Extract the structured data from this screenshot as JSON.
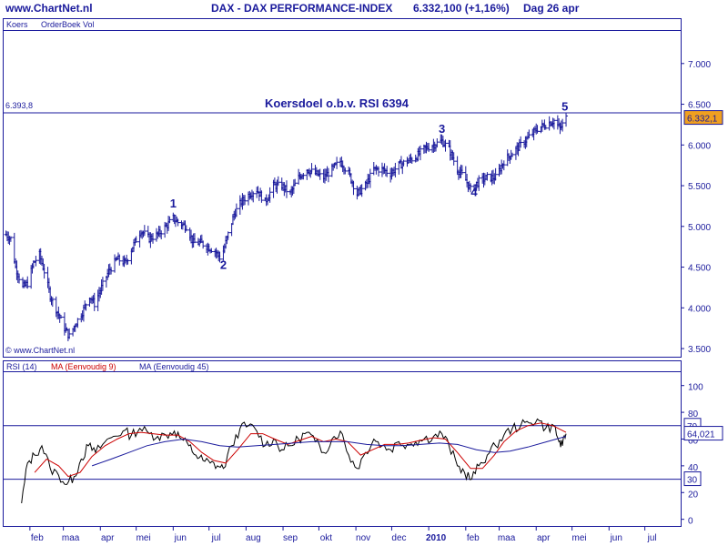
{
  "header": {
    "site": "www.ChartNet.nl",
    "title": "DAX - DAX PERFORMANCE-INDEX",
    "quote": "6.332,100 (+1,16%)",
    "period": "Dag 26 apr"
  },
  "price_panel": {
    "legend": [
      "Koers",
      "OrderBoek Vol"
    ],
    "copyright": "© www.ChartNet.nl",
    "annotation": "Koersdoel o.b.v. RSI 6394",
    "target_line_label": "6.393,8",
    "last_price_label": "6.332,1"
  },
  "rsi_panel": {
    "legend": {
      "rsi": "RSI (14)",
      "ma9": "MA (Eenvoudig 9)",
      "ma45": "MA (Eenvoudig 45)"
    },
    "last_value_label": "64,021",
    "upper_level_label": "70",
    "lower_level_label": "30"
  },
  "colors": {
    "accent": "#1a1a9c",
    "ma9": "#cc0000",
    "last_badge": "#f0a020",
    "grid": "#1a1a9c"
  },
  "chart_data": [
    {
      "type": "ohlc",
      "x_type": "date",
      "x_range": [
        "2009-01-10",
        "2010-07-31"
      ],
      "x_tick_labels": [
        "feb",
        "maa",
        "apr",
        "mei",
        "jun",
        "jul",
        "aug",
        "sep",
        "okt",
        "nov",
        "dec",
        "2010",
        "feb",
        "maa",
        "apr",
        "mei",
        "jun",
        "jul"
      ],
      "x_tick_dates": [
        "2009-02-01",
        "2009-03-01",
        "2009-04-01",
        "2009-05-01",
        "2009-06-01",
        "2009-07-01",
        "2009-08-01",
        "2009-09-01",
        "2009-10-01",
        "2009-11-01",
        "2009-12-01",
        "2010-01-01",
        "2010-02-01",
        "2010-03-01",
        "2010-04-01",
        "2010-05-01",
        "2010-06-01",
        "2010-07-01"
      ],
      "y_range": [
        3400,
        7400
      ],
      "y_tick_labels": [
        "3.500",
        "4.000",
        "4.500",
        "5.000",
        "5.500",
        "6.000",
        "6.500",
        "7.000"
      ],
      "y_tick_values": [
        3500,
        4000,
        4500,
        5000,
        5500,
        6000,
        6500,
        7000
      ],
      "target_level": 6393.8,
      "last_value": 6332.1,
      "close_path": [
        [
          "2009-01-12",
          4900
        ],
        [
          "2009-01-16",
          4850
        ],
        [
          "2009-01-20",
          4500
        ],
        [
          "2009-01-26",
          4250
        ],
        [
          "2009-01-30",
          4300
        ],
        [
          "2009-02-04",
          4550
        ],
        [
          "2009-02-09",
          4650
        ],
        [
          "2009-02-13",
          4450
        ],
        [
          "2009-02-18",
          4150
        ],
        [
          "2009-02-24",
          3950
        ],
        [
          "2009-03-02",
          3750
        ],
        [
          "2009-03-06",
          3650
        ],
        [
          "2009-03-11",
          3800
        ],
        [
          "2009-03-17",
          3950
        ],
        [
          "2009-03-23",
          4150
        ],
        [
          "2009-03-27",
          4050
        ],
        [
          "2009-04-02",
          4250
        ],
        [
          "2009-04-08",
          4450
        ],
        [
          "2009-04-15",
          4600
        ],
        [
          "2009-04-22",
          4550
        ],
        [
          "2009-04-28",
          4750
        ],
        [
          "2009-05-05",
          4950
        ],
        [
          "2009-05-12",
          4850
        ],
        [
          "2009-05-19",
          4900
        ],
        [
          "2009-05-26",
          5000
        ],
        [
          "2009-06-01",
          5100
        ],
        [
          "2009-06-05",
          5050
        ],
        [
          "2009-06-12",
          5000
        ],
        [
          "2009-06-18",
          4800
        ],
        [
          "2009-06-24",
          4800
        ],
        [
          "2009-06-30",
          4750
        ],
        [
          "2009-07-06",
          4700
        ],
        [
          "2009-07-11",
          4600
        ],
        [
          "2009-07-16",
          4850
        ],
        [
          "2009-07-22",
          5150
        ],
        [
          "2009-07-28",
          5300
        ],
        [
          "2009-08-04",
          5400
        ],
        [
          "2009-08-10",
          5450
        ],
        [
          "2009-08-17",
          5300
        ],
        [
          "2009-08-24",
          5500
        ],
        [
          "2009-08-31",
          5500
        ],
        [
          "2009-09-07",
          5400
        ],
        [
          "2009-09-14",
          5600
        ],
        [
          "2009-09-21",
          5700
        ],
        [
          "2009-09-28",
          5650
        ],
        [
          "2009-10-05",
          5600
        ],
        [
          "2009-10-12",
          5700
        ],
        [
          "2009-10-19",
          5800
        ],
        [
          "2009-10-26",
          5650
        ],
        [
          "2009-11-02",
          5400
        ],
        [
          "2009-11-09",
          5500
        ],
        [
          "2009-11-16",
          5700
        ],
        [
          "2009-11-23",
          5700
        ],
        [
          "2009-11-30",
          5650
        ],
        [
          "2009-12-07",
          5750
        ],
        [
          "2009-12-14",
          5800
        ],
        [
          "2009-12-21",
          5850
        ],
        [
          "2009-12-28",
          5950
        ],
        [
          "2010-01-05",
          6000
        ],
        [
          "2010-01-12",
          6050
        ],
        [
          "2010-01-18",
          5950
        ],
        [
          "2010-01-25",
          5700
        ],
        [
          "2010-01-31",
          5600
        ],
        [
          "2010-02-05",
          5450
        ],
        [
          "2010-02-12",
          5550
        ],
        [
          "2010-02-19",
          5600
        ],
        [
          "2010-02-26",
          5600
        ],
        [
          "2010-03-05",
          5800
        ],
        [
          "2010-03-12",
          5900
        ],
        [
          "2010-03-19",
          6000
        ],
        [
          "2010-03-26",
          6100
        ],
        [
          "2010-04-02",
          6200
        ],
        [
          "2010-04-09",
          6250
        ],
        [
          "2010-04-16",
          6300
        ],
        [
          "2010-04-21",
          6200
        ],
        [
          "2010-04-26",
          6332.1
        ]
      ],
      "wave_labels": [
        {
          "label": "1",
          "date": "2009-06-01",
          "value": 5230
        },
        {
          "label": "2",
          "date": "2009-07-13",
          "value": 4480
        },
        {
          "label": "3",
          "date": "2010-01-12",
          "value": 6150
        },
        {
          "label": "4",
          "date": "2010-02-08",
          "value": 5370
        },
        {
          "label": "5",
          "date": "2010-04-25",
          "value": 6420
        }
      ]
    },
    {
      "type": "line",
      "x_type": "date",
      "x_range": [
        "2009-01-10",
        "2010-07-31"
      ],
      "y_range": [
        -5,
        110
      ],
      "y_tick_labels": [
        "0",
        "20",
        "40",
        "60",
        "80",
        "100"
      ],
      "y_tick_values": [
        0,
        20,
        40,
        60,
        80,
        100
      ],
      "levels": [
        30,
        70
      ],
      "last_value": 64.021,
      "series": [
        {
          "name": "RSI (14)",
          "points": [
            [
              "2009-01-25",
              12
            ],
            [
              "2009-01-30",
              42
            ],
            [
              "2009-02-05",
              48
            ],
            [
              "2009-02-11",
              55
            ],
            [
              "2009-02-18",
              38
            ],
            [
              "2009-02-25",
              33
            ],
            [
              "2009-03-04",
              26
            ],
            [
              "2009-03-10",
              32
            ],
            [
              "2009-03-16",
              45
            ],
            [
              "2009-03-22",
              55
            ],
            [
              "2009-03-28",
              50
            ],
            [
              "2009-04-05",
              58
            ],
            [
              "2009-04-12",
              62
            ],
            [
              "2009-04-20",
              66
            ],
            [
              "2009-04-27",
              63
            ],
            [
              "2009-05-04",
              68
            ],
            [
              "2009-05-12",
              64
            ],
            [
              "2009-05-19",
              62
            ],
            [
              "2009-05-26",
              63
            ],
            [
              "2009-06-02",
              66
            ],
            [
              "2009-06-08",
              60
            ],
            [
              "2009-06-14",
              55
            ],
            [
              "2009-06-20",
              48
            ],
            [
              "2009-06-26",
              44
            ],
            [
              "2009-07-02",
              42
            ],
            [
              "2009-07-08",
              40
            ],
            [
              "2009-07-13",
              38
            ],
            [
              "2009-07-20",
              55
            ],
            [
              "2009-07-27",
              68
            ],
            [
              "2009-08-03",
              70
            ],
            [
              "2009-08-10",
              66
            ],
            [
              "2009-08-17",
              55
            ],
            [
              "2009-08-24",
              60
            ],
            [
              "2009-08-31",
              52
            ],
            [
              "2009-09-07",
              55
            ],
            [
              "2009-09-14",
              60
            ],
            [
              "2009-09-21",
              65
            ],
            [
              "2009-09-28",
              58
            ],
            [
              "2009-10-05",
              50
            ],
            [
              "2009-10-12",
              60
            ],
            [
              "2009-10-19",
              66
            ],
            [
              "2009-10-26",
              48
            ],
            [
              "2009-11-02",
              38
            ],
            [
              "2009-11-09",
              50
            ],
            [
              "2009-11-16",
              60
            ],
            [
              "2009-11-23",
              55
            ],
            [
              "2009-11-30",
              52
            ],
            [
              "2009-12-07",
              58
            ],
            [
              "2009-12-14",
              56
            ],
            [
              "2009-12-21",
              58
            ],
            [
              "2009-12-28",
              60
            ],
            [
              "2010-01-05",
              62
            ],
            [
              "2010-01-12",
              64
            ],
            [
              "2010-01-18",
              55
            ],
            [
              "2010-01-25",
              40
            ],
            [
              "2010-01-31",
              35
            ],
            [
              "2010-02-06",
              30
            ],
            [
              "2010-02-12",
              40
            ],
            [
              "2010-02-19",
              48
            ],
            [
              "2010-02-26",
              55
            ],
            [
              "2010-03-05",
              63
            ],
            [
              "2010-03-12",
              68
            ],
            [
              "2010-03-19",
              70
            ],
            [
              "2010-03-26",
              72
            ],
            [
              "2010-04-02",
              75
            ],
            [
              "2010-04-09",
              68
            ],
            [
              "2010-04-16",
              70
            ],
            [
              "2010-04-20",
              58
            ],
            [
              "2010-04-23",
              55
            ],
            [
              "2010-04-26",
              64
            ]
          ]
        },
        {
          "name": "MA (Eenvoudig 9)",
          "points": [
            [
              "2009-02-05",
              35
            ],
            [
              "2009-02-15",
              45
            ],
            [
              "2009-02-25",
              40
            ],
            [
              "2009-03-05",
              32
            ],
            [
              "2009-03-15",
              35
            ],
            [
              "2009-03-25",
              47
            ],
            [
              "2009-04-05",
              55
            ],
            [
              "2009-04-15",
              60
            ],
            [
              "2009-04-25",
              64
            ],
            [
              "2009-05-05",
              65
            ],
            [
              "2009-05-15",
              64
            ],
            [
              "2009-05-25",
              63
            ],
            [
              "2009-06-05",
              63
            ],
            [
              "2009-06-15",
              58
            ],
            [
              "2009-06-25",
              50
            ],
            [
              "2009-07-05",
              44
            ],
            [
              "2009-07-15",
              42
            ],
            [
              "2009-07-25",
              52
            ],
            [
              "2009-08-05",
              64
            ],
            [
              "2009-08-15",
              64
            ],
            [
              "2009-08-25",
              60
            ],
            [
              "2009-09-05",
              56
            ],
            [
              "2009-09-15",
              59
            ],
            [
              "2009-09-25",
              62
            ],
            [
              "2009-10-05",
              58
            ],
            [
              "2009-10-15",
              60
            ],
            [
              "2009-10-25",
              58
            ],
            [
              "2009-11-05",
              48
            ],
            [
              "2009-11-15",
              52
            ],
            [
              "2009-11-25",
              56
            ],
            [
              "2009-12-05",
              56
            ],
            [
              "2009-12-15",
              57
            ],
            [
              "2009-12-25",
              59
            ],
            [
              "2010-01-05",
              61
            ],
            [
              "2010-01-15",
              60
            ],
            [
              "2010-01-25",
              50
            ],
            [
              "2010-02-05",
              38
            ],
            [
              "2010-02-15",
              38
            ],
            [
              "2010-02-25",
              48
            ],
            [
              "2010-03-05",
              58
            ],
            [
              "2010-03-15",
              66
            ],
            [
              "2010-03-25",
              70
            ],
            [
              "2010-04-05",
              72
            ],
            [
              "2010-04-15",
              70
            ],
            [
              "2010-04-26",
              65
            ]
          ]
        },
        {
          "name": "MA (Eenvoudig 45)",
          "points": [
            [
              "2009-03-25",
              40
            ],
            [
              "2009-04-10",
              45
            ],
            [
              "2009-04-25",
              50
            ],
            [
              "2009-05-10",
              55
            ],
            [
              "2009-05-25",
              58
            ],
            [
              "2009-06-10",
              60
            ],
            [
              "2009-06-25",
              58
            ],
            [
              "2009-07-10",
              55
            ],
            [
              "2009-07-25",
              54
            ],
            [
              "2009-08-10",
              55
            ],
            [
              "2009-08-25",
              56
            ],
            [
              "2009-09-10",
              57
            ],
            [
              "2009-09-25",
              58
            ],
            [
              "2009-10-10",
              58
            ],
            [
              "2009-10-25",
              58
            ],
            [
              "2009-11-10",
              56
            ],
            [
              "2009-11-25",
              55
            ],
            [
              "2009-12-10",
              55
            ],
            [
              "2009-12-25",
              56
            ],
            [
              "2010-01-10",
              57
            ],
            [
              "2010-01-25",
              56
            ],
            [
              "2010-02-10",
              52
            ],
            [
              "2010-02-25",
              50
            ],
            [
              "2010-03-10",
              51
            ],
            [
              "2010-03-25",
              54
            ],
            [
              "2010-04-10",
              58
            ],
            [
              "2010-04-26",
              62
            ]
          ]
        }
      ]
    }
  ]
}
